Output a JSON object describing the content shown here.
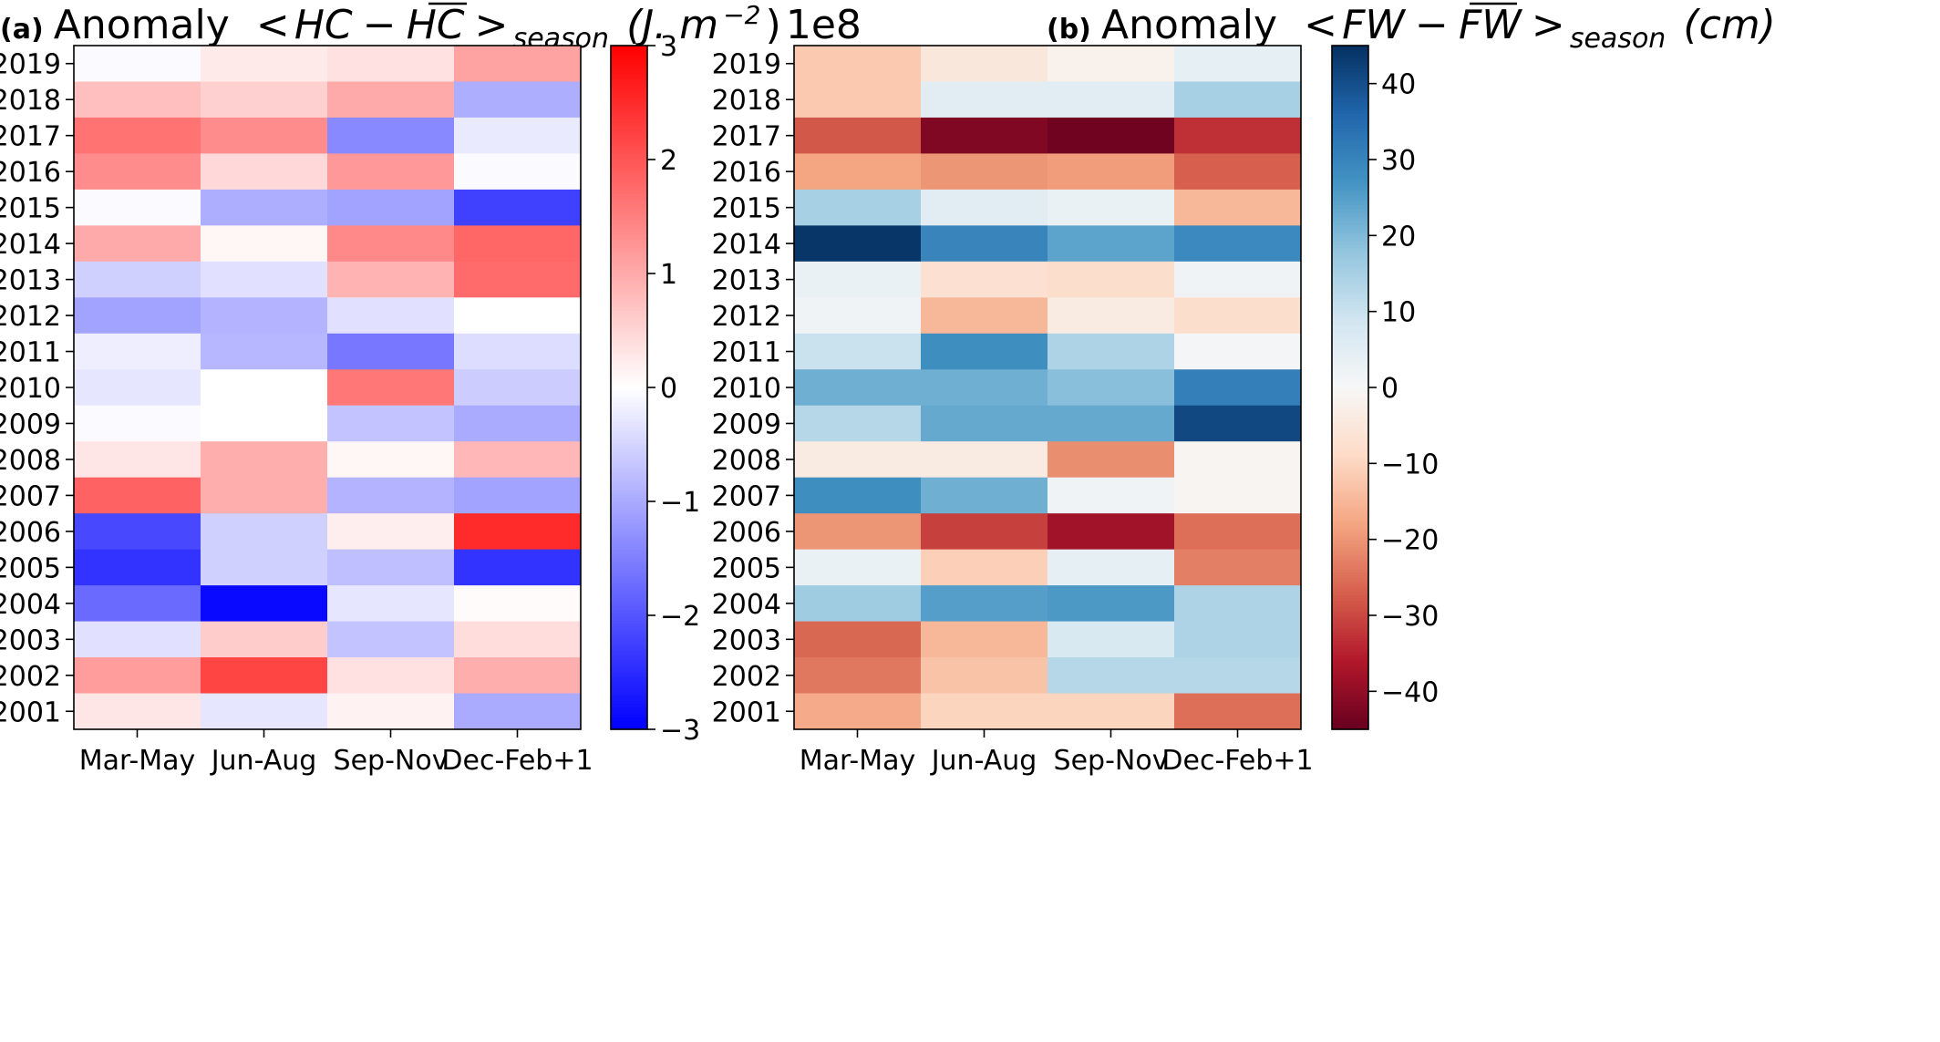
{
  "chart_data": [
    {
      "type": "heatmap",
      "panel_label": "(a)",
      "title_prefix": "Anomaly",
      "title_lt": "<",
      "title_var": "HC",
      "title_minus": "−",
      "title_bar": "HC",
      "title_gt": ">",
      "title_sub": "season",
      "title_units": "(J. m",
      "title_exp": "−2",
      "title_close": ")",
      "colorbar_offset_text": "1e8",
      "categories": [
        "Mar-May",
        "Jun-Aug",
        "Sep-Nov",
        "Dec-Feb+1"
      ],
      "years": [
        "2019",
        "2018",
        "2017",
        "2016",
        "2015",
        "2014",
        "2013",
        "2012",
        "2011",
        "2010",
        "2009",
        "2008",
        "2007",
        "2006",
        "2005",
        "2004",
        "2003",
        "2002",
        "2001"
      ],
      "values": [
        [
          -0.05,
          0.25,
          0.35,
          1.1
        ],
        [
          0.75,
          0.55,
          1.0,
          -0.95
        ],
        [
          1.65,
          1.35,
          -1.4,
          -0.25
        ],
        [
          1.35,
          0.45,
          1.2,
          -0.05
        ],
        [
          -0.05,
          -0.95,
          -1.1,
          -2.25
        ],
        [
          1.0,
          0.1,
          1.4,
          1.8
        ],
        [
          -0.55,
          -0.35,
          0.9,
          1.75
        ],
        [
          -1.1,
          -0.9,
          -0.35,
          0.0
        ],
        [
          -0.2,
          -0.85,
          -1.6,
          -0.4
        ],
        [
          -0.3,
          0.0,
          1.6,
          -0.6
        ],
        [
          -0.05,
          0.0,
          -0.7,
          -1.0
        ],
        [
          0.3,
          0.95,
          0.1,
          0.85
        ],
        [
          1.85,
          0.95,
          -0.9,
          -1.1
        ],
        [
          -2.15,
          -0.55,
          0.2,
          2.5
        ],
        [
          -2.4,
          -0.55,
          -0.75,
          -2.4
        ],
        [
          -1.75,
          -2.9,
          -0.3,
          0.05
        ],
        [
          -0.35,
          0.6,
          -0.7,
          0.4
        ],
        [
          1.15,
          2.2,
          0.35,
          0.95
        ],
        [
          0.3,
          -0.3,
          0.15,
          -1.0
        ]
      ],
      "vmin": -3,
      "vmax": 3,
      "colorbar_ticks": [
        3,
        2,
        1,
        0,
        -1,
        -2,
        -3
      ],
      "colorbar_tick_labels": [
        "3",
        "2",
        "1",
        "0",
        "−1",
        "−2",
        "−3"
      ],
      "colormap": "bwr"
    },
    {
      "type": "heatmap",
      "panel_label": "(b)",
      "title_prefix": "Anomaly",
      "title_lt": "<",
      "title_var": "FW",
      "title_minus": "−",
      "title_bar": "FW",
      "title_gt": ">",
      "title_sub": "season",
      "title_units": "(cm)",
      "categories": [
        "Mar-May",
        "Jun-Aug",
        "Sep-Nov",
        "Dec-Feb+1"
      ],
      "years": [
        "2019",
        "2018",
        "2017",
        "2016",
        "2015",
        "2014",
        "2013",
        "2012",
        "2011",
        "2010",
        "2009",
        "2008",
        "2007",
        "2006",
        "2005",
        "2004",
        "2003",
        "2002",
        "2001"
      ],
      "values": [
        [
          -12,
          -5,
          -2,
          4
        ],
        [
          -12,
          5,
          5,
          15
        ],
        [
          -28,
          -42,
          -44,
          -33
        ],
        [
          -18,
          -20,
          -19,
          -27
        ],
        [
          15,
          5,
          3,
          -15
        ],
        [
          44,
          30,
          24,
          29
        ],
        [
          3,
          -7,
          -8,
          2
        ],
        [
          2,
          -15,
          -4,
          -8
        ],
        [
          10,
          28,
          14,
          1
        ],
        [
          22,
          22,
          19,
          31
        ],
        [
          13,
          23,
          23,
          41
        ],
        [
          -4,
          -4,
          -21,
          -1
        ],
        [
          28,
          22,
          2,
          -1
        ],
        [
          -20,
          -31,
          -38,
          -25
        ],
        [
          3,
          -11,
          4,
          -23
        ],
        [
          16,
          25,
          26,
          14
        ],
        [
          -26,
          -15,
          7,
          14
        ],
        [
          -24,
          -13,
          13,
          13
        ],
        [
          -17,
          -10,
          -10,
          -25
        ]
      ],
      "vmin": -45,
      "vmax": 45,
      "colorbar_ticks": [
        40,
        30,
        20,
        10,
        0,
        -10,
        -20,
        -30,
        -40
      ],
      "colorbar_tick_labels": [
        "40",
        "30",
        "20",
        "10",
        "0",
        "−10",
        "−20",
        "−30",
        "−40"
      ],
      "colormap": "RdBu"
    }
  ]
}
